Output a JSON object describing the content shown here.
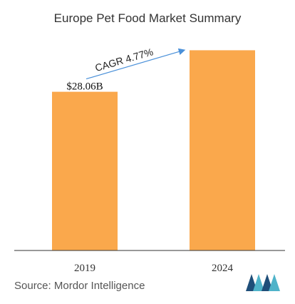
{
  "title": "Europe Pet Food Market Summary",
  "source": "Source: Mordor Intelligence",
  "colors": {
    "bar": "#FAA84C",
    "axis": "#333333",
    "arrow": "#4A90D9",
    "logo_dark": "#1F4E79",
    "logo_light": "#4FB3C9"
  },
  "chart_data": {
    "type": "bar",
    "categories": [
      "2019",
      "2024"
    ],
    "values": [
      28.06,
      35.4
    ],
    "data_labels": [
      "$28.06B",
      ""
    ],
    "annotation": "CAGR 4.77%",
    "ylim": [
      0,
      40.5
    ]
  }
}
